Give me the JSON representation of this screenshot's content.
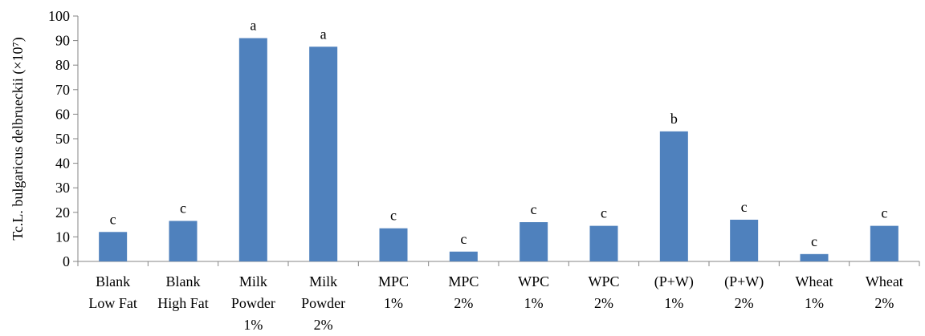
{
  "chart_data": {
    "type": "bar",
    "title": "",
    "xlabel": "",
    "ylabel": "Tc.L. bulgaricus delbrueckii  (×10⁷)",
    "ylim": [
      0,
      100
    ],
    "yticks": [
      0,
      10,
      20,
      30,
      40,
      50,
      60,
      70,
      80,
      90,
      100
    ],
    "grid": false,
    "legend": "none",
    "bar_color": "#4f81bd",
    "categories": [
      [
        "Blank",
        "Low Fat"
      ],
      [
        "Blank",
        "High Fat"
      ],
      [
        "Milk",
        "Powder",
        "1%"
      ],
      [
        "Milk",
        "Powder",
        "2%"
      ],
      [
        "MPC",
        "1%"
      ],
      [
        "MPC",
        "2%"
      ],
      [
        "WPC",
        "1%"
      ],
      [
        "WPC",
        "2%"
      ],
      [
        "(P+W)",
        "1%"
      ],
      [
        "(P+W)",
        "2%"
      ],
      [
        "Wheat",
        "1%"
      ],
      [
        "Wheat",
        "2%"
      ]
    ],
    "values": [
      12,
      16.5,
      91,
      87.5,
      13.5,
      4,
      16,
      14.5,
      53,
      17,
      3,
      14.5
    ],
    "labels": [
      "c",
      "c",
      "a",
      "a",
      "c",
      "c",
      "c",
      "c",
      "b",
      "c",
      "c",
      "c"
    ]
  }
}
